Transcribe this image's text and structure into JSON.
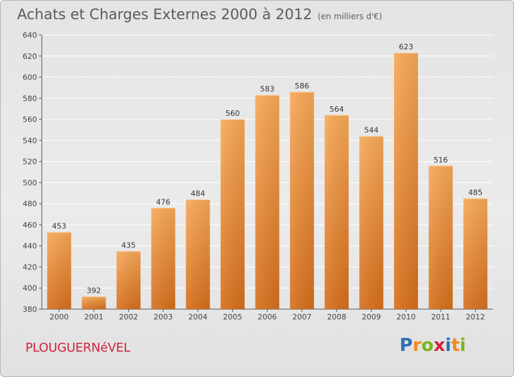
{
  "chart_data": {
    "type": "bar",
    "title": "Achats et Charges Externes 2000 à 2012",
    "subtitle": "(en milliers d'€)",
    "categories": [
      "2000",
      "2001",
      "2002",
      "2003",
      "2004",
      "2005",
      "2006",
      "2007",
      "2008",
      "2009",
      "2010",
      "2011",
      "2012"
    ],
    "values": [
      453,
      392,
      435,
      476,
      484,
      560,
      583,
      586,
      564,
      544,
      623,
      516,
      485
    ],
    "ylim": [
      380,
      640
    ],
    "yticks": [
      380,
      400,
      420,
      440,
      460,
      480,
      500,
      520,
      540,
      560,
      580,
      600,
      620,
      640
    ],
    "grid": true,
    "legend": "none",
    "bar_color": "#e8832f"
  },
  "footer": {
    "commune": "PLOUGUERNéVEL",
    "logo_letters": [
      "P",
      "r",
      "o",
      "x",
      "i",
      "t",
      "i"
    ],
    "logo_colors": [
      "#2f6fb6",
      "#f08a1c",
      "#7ab51d",
      "#d0243f",
      "#2f6fb6",
      "#f08a1c",
      "#7ab51d"
    ]
  }
}
